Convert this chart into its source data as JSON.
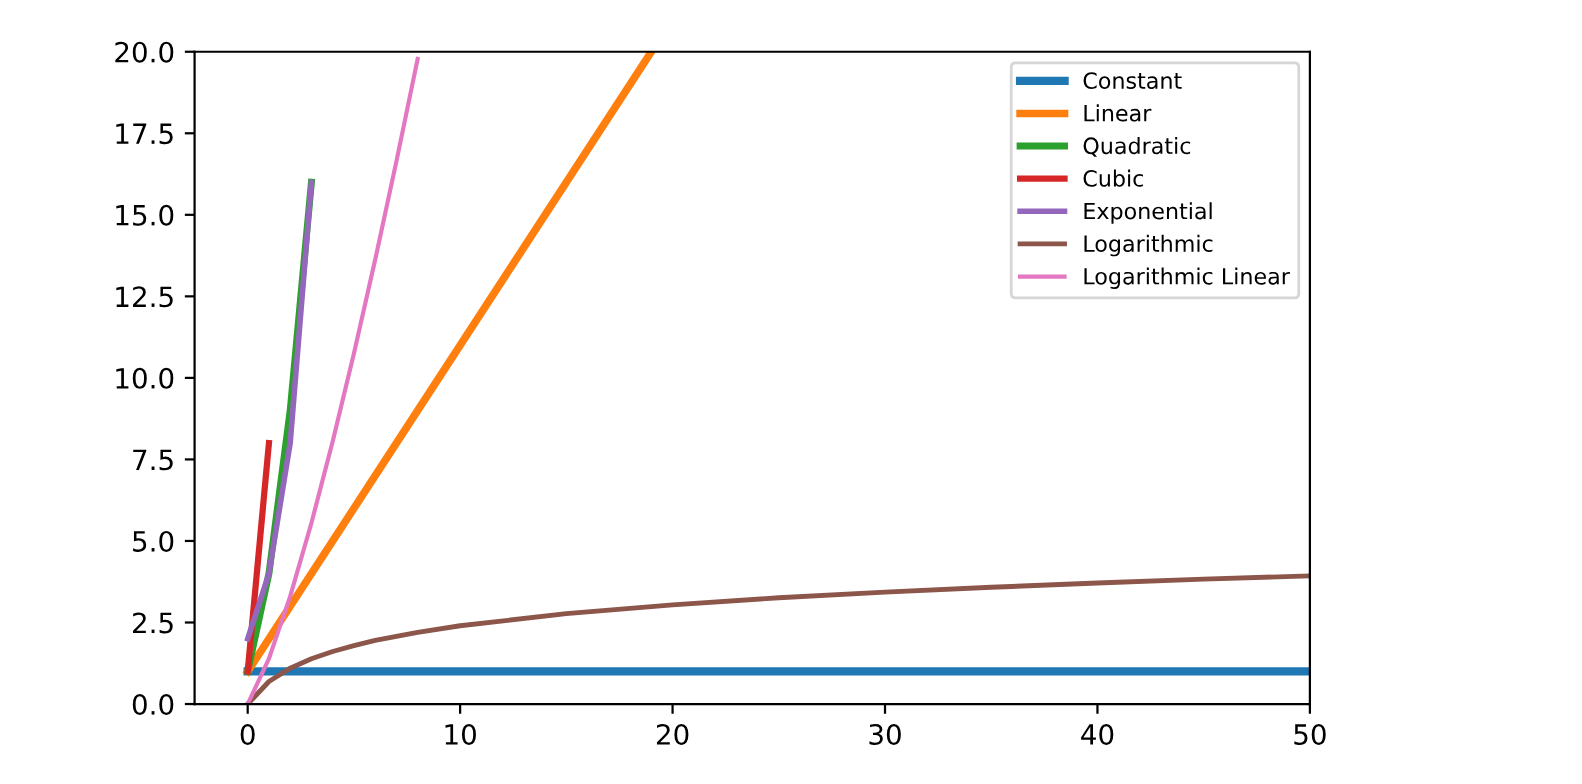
{
  "chart_data": {
    "type": "line",
    "xlim": [
      -2.5,
      50
    ],
    "xticks": [
      0,
      10,
      20,
      30,
      40,
      50
    ],
    "ylim": [
      0,
      20
    ],
    "yticks": [
      {
        "value": 0,
        "label": "0.0"
      },
      {
        "value": 2.5,
        "label": "2.5"
      },
      {
        "value": 5,
        "label": "5.0"
      },
      {
        "value": 7.5,
        "label": "7.5"
      },
      {
        "value": 10,
        "label": "10.0"
      },
      {
        "value": 12.5,
        "label": "12.5"
      },
      {
        "value": 15,
        "label": "15.0"
      },
      {
        "value": 17.5,
        "label": "17.5"
      },
      {
        "value": 20,
        "label": "20.0"
      }
    ],
    "grid": false,
    "legend": "top right",
    "series": [
      {
        "name": "Constant",
        "color": "#1f77b4",
        "x": [
          0,
          50
        ],
        "values": [
          1,
          1
        ]
      },
      {
        "name": "Linear",
        "color": "#ff7f0e",
        "x": [
          0,
          19
        ],
        "values": [
          1,
          20
        ]
      },
      {
        "name": "Quadratic",
        "color": "#2ca02c",
        "x": [
          0,
          1,
          2,
          3
        ],
        "values": [
          1,
          4,
          9,
          16
        ]
      },
      {
        "name": "Cubic",
        "color": "#d62728",
        "x": [
          0,
          1
        ],
        "values": [
          1,
          8
        ]
      },
      {
        "name": "Exponential",
        "color": "#9467bd",
        "x": [
          0,
          1,
          2,
          3
        ],
        "values": [
          2,
          4,
          8,
          16
        ]
      },
      {
        "name": "Logarithmic",
        "color": "#8c564b",
        "x": [
          0,
          1,
          2,
          3,
          4,
          5,
          6,
          8,
          10,
          15,
          20,
          25,
          30,
          35,
          40,
          45,
          50
        ],
        "values": [
          0,
          0.69,
          1.1,
          1.39,
          1.61,
          1.79,
          1.95,
          2.2,
          2.4,
          2.77,
          3.04,
          3.26,
          3.43,
          3.58,
          3.71,
          3.83,
          3.93
        ]
      },
      {
        "name": "Logarithmic Linear",
        "color": "#e377c2",
        "x": [
          0,
          1,
          2,
          3,
          4,
          5,
          6,
          7,
          8
        ],
        "values": [
          0,
          1.39,
          3.3,
          5.55,
          8.05,
          10.75,
          13.62,
          16.64,
          19.78
        ]
      }
    ]
  }
}
